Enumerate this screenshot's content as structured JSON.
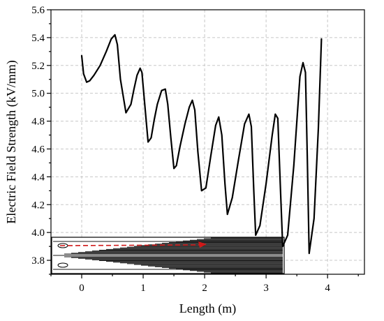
{
  "chart_data": {
    "type": "line",
    "title": "",
    "xlabel": "Length (m)",
    "ylabel": "Electric Field Strength (kV/mm)",
    "xlim": [
      -0.5,
      4.6
    ],
    "ylim": [
      3.7,
      5.6
    ],
    "xticks": [
      0,
      1,
      2,
      3,
      4
    ],
    "xtick_labels": [
      "0",
      "1",
      "2",
      "3",
      "4"
    ],
    "yticks": [
      3.8,
      4.0,
      4.2,
      4.4,
      4.6,
      4.8,
      5.0,
      5.2,
      5.4,
      5.6
    ],
    "ytick_labels": [
      "3.8",
      "4.0",
      "4.2",
      "4.4",
      "4.6",
      "4.8",
      "5.0",
      "5.2",
      "5.4",
      "5.6"
    ],
    "grid": true,
    "legend": "none",
    "series": [
      {
        "color": "#000000",
        "x": [
          0.0,
          0.03,
          0.08,
          0.13,
          0.2,
          0.3,
          0.4,
          0.48,
          0.54,
          0.58,
          0.63,
          0.72,
          0.8,
          0.85,
          0.9,
          0.95,
          0.98,
          1.02,
          1.08,
          1.13,
          1.18,
          1.23,
          1.3,
          1.36,
          1.4,
          1.45,
          1.5,
          1.54,
          1.6,
          1.68,
          1.75,
          1.8,
          1.84,
          1.89,
          1.95,
          2.02,
          2.1,
          2.18,
          2.23,
          2.28,
          2.33,
          2.37,
          2.45,
          2.55,
          2.65,
          2.72,
          2.76,
          2.8,
          2.83,
          2.9,
          3.0,
          3.1,
          3.15,
          3.19,
          3.23,
          3.27,
          3.35,
          3.45,
          3.55,
          3.6,
          3.64,
          3.67,
          3.7,
          3.78,
          3.85,
          3.9
        ],
        "y": [
          5.27,
          5.14,
          5.08,
          5.09,
          5.13,
          5.2,
          5.3,
          5.39,
          5.42,
          5.35,
          5.1,
          4.86,
          4.92,
          5.03,
          5.13,
          5.18,
          5.15,
          4.95,
          4.65,
          4.68,
          4.81,
          4.92,
          5.02,
          5.03,
          4.92,
          4.68,
          4.46,
          4.48,
          4.62,
          4.78,
          4.9,
          4.95,
          4.88,
          4.58,
          4.3,
          4.32,
          4.55,
          4.77,
          4.83,
          4.7,
          4.35,
          4.13,
          4.25,
          4.52,
          4.78,
          4.85,
          4.76,
          4.3,
          3.98,
          4.05,
          4.35,
          4.7,
          4.85,
          4.82,
          4.35,
          3.9,
          3.98,
          4.48,
          5.12,
          5.22,
          5.15,
          4.55,
          3.85,
          4.1,
          4.75,
          5.39
        ]
      }
    ]
  }
}
